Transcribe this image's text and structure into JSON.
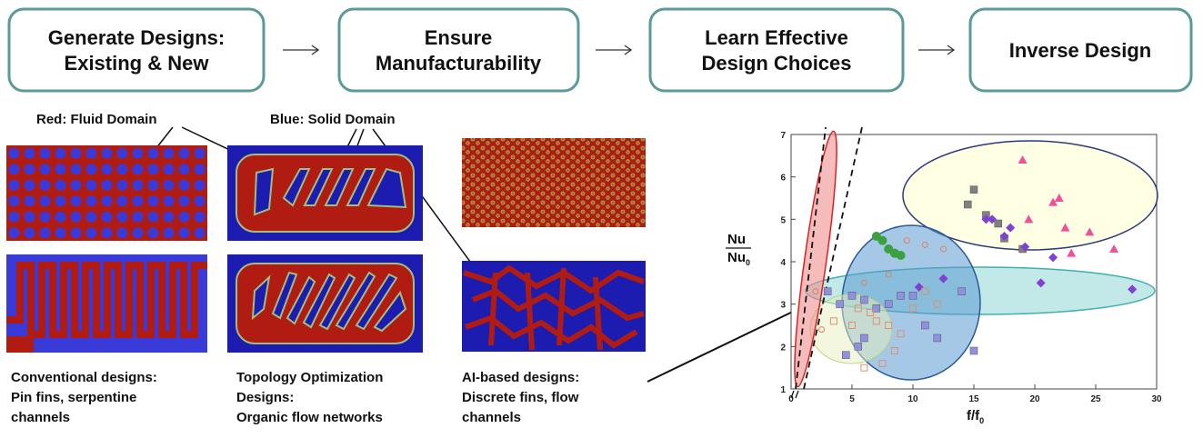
{
  "steps": [
    "Generate Designs:\nExisting & New",
    "Ensure\nManufacturability",
    "Learn Effective\nDesign Choices",
    "Inverse Design"
  ],
  "labels": {
    "fluid": "Red: Fluid Domain",
    "solid": "Blue: Solid Domain"
  },
  "captions": [
    [
      "Conventional designs:",
      "Pin fins, serpentine",
      "channels"
    ],
    [
      "Topology Optimization",
      "Designs:",
      "Organic flow networks"
    ],
    [
      "AI-based designs:",
      "Discrete fins, flow",
      "channels"
    ]
  ],
  "chart_data": {
    "type": "scatter",
    "y_label_top": "Nu",
    "y_label_bottom": "Nu",
    "y_label_sub": "0",
    "x_label": "f/f",
    "x_label_sub": "0",
    "xlim": [
      0,
      30
    ],
    "ylim": [
      1,
      7
    ],
    "xticks": [
      0,
      5,
      10,
      15,
      20,
      25,
      30
    ],
    "yticks": [
      1,
      2,
      3,
      4,
      5,
      6,
      7
    ],
    "series": [
      {
        "marker": "triangle",
        "color": "#f0509a",
        "x": [
          19,
          21.5,
          22,
          19.5,
          22.5,
          24.5,
          26.5,
          23
        ],
        "y": [
          6.4,
          5.4,
          5.5,
          5.0,
          4.8,
          4.7,
          4.3,
          4.2
        ]
      },
      {
        "marker": "square",
        "color": "#808080",
        "x": [
          15,
          14.5,
          16,
          17,
          17.5,
          19
        ],
        "y": [
          5.7,
          5.35,
          5.1,
          4.9,
          4.55,
          4.3
        ]
      },
      {
        "marker": "diamond",
        "color": "#8040d0",
        "x": [
          16,
          16.5,
          18,
          19.2,
          17.5,
          21.5,
          28,
          12.5,
          20.5,
          10.5
        ],
        "y": [
          5.0,
          5.0,
          4.8,
          4.35,
          4.6,
          4.1,
          3.35,
          3.6,
          3.5,
          3.4
        ]
      },
      {
        "marker": "circle",
        "color": "#3aa040",
        "x": [
          7,
          7.5,
          8,
          8.5,
          9
        ],
        "y": [
          4.6,
          4.5,
          4.3,
          4.2,
          4.15
        ]
      },
      {
        "marker": "square",
        "color": "#9090e0",
        "x": [
          5,
          6,
          7,
          8,
          9,
          10,
          11,
          12,
          14,
          5.5,
          4.5,
          4,
          3,
          15,
          6
        ],
        "y": [
          3.2,
          3.1,
          2.9,
          3.0,
          3.2,
          3.2,
          2.5,
          2.2,
          3.3,
          2.0,
          1.8,
          3.0,
          3.3,
          1.9,
          2.2
        ]
      },
      {
        "marker": "square-open",
        "color": "#e09070",
        "x": [
          3.5,
          5,
          6.5,
          7,
          8,
          9,
          10,
          11,
          12,
          6,
          7.5,
          8.5,
          5.5
        ],
        "y": [
          2.6,
          2.5,
          2.8,
          2.6,
          2.5,
          2.3,
          2.9,
          3.3,
          3.0,
          1.5,
          1.6,
          1.9,
          2.9
        ]
      },
      {
        "marker": "circle-open",
        "color": "#e08060",
        "x": [
          9.5,
          11,
          12.5,
          6,
          8,
          2,
          2.5
        ],
        "y": [
          4.5,
          4.4,
          4.3,
          3.5,
          3.7,
          3.3,
          2.4
        ]
      }
    ]
  }
}
